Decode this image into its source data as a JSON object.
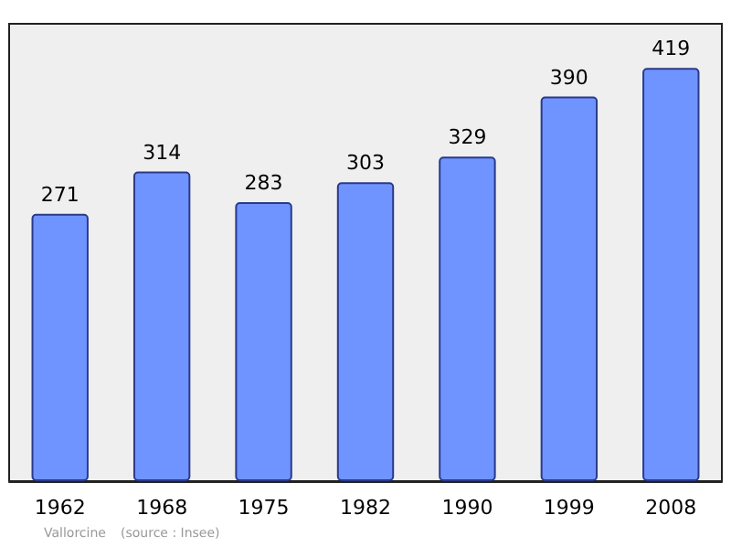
{
  "chart_data": {
    "type": "bar",
    "categories": [
      "1962",
      "1968",
      "1975",
      "1982",
      "1990",
      "1999",
      "2008"
    ],
    "values": [
      271,
      314,
      283,
      303,
      329,
      390,
      419
    ],
    "color": "#7094ff",
    "data_labels": true,
    "annotations": [
      "Vallorcine",
      "(source : Insee)"
    ]
  }
}
